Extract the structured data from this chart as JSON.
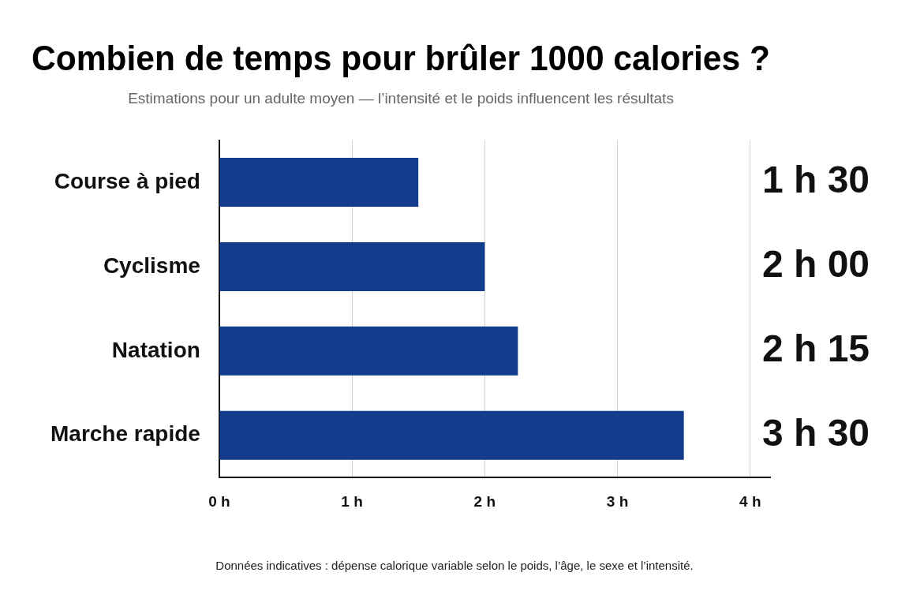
{
  "chart_data": {
    "type": "bar",
    "orientation": "horizontal",
    "title": "Combien de temps pour brûler 1000 calories ?",
    "subtitle": "Estimations pour un adulte moyen — l’intensité et le poids influencent les résultats",
    "categories": [
      "Course à pied",
      "Cyclisme",
      "Natation",
      "Marche rapide"
    ],
    "values": [
      1.5,
      2,
      2.25,
      3.5
    ],
    "value_labels": [
      "1 h 30",
      "2 h 00",
      "2 h 15",
      "3 h 30"
    ],
    "color": "#123c8c",
    "xlim": [
      0,
      4.15
    ],
    "xticks": [
      {
        "value": 0,
        "label": "0 h"
      },
      {
        "value": 1,
        "label": "1 h"
      },
      {
        "value": 2,
        "label": "2 h"
      },
      {
        "value": 3,
        "label": "3 h"
      },
      {
        "value": 4,
        "label": "4 h"
      }
    ],
    "grid": "x",
    "annotations": [
      "Données indicatives : dépense calorique variable selon le poids, l’âge, le sexe et l’intensité."
    ]
  }
}
